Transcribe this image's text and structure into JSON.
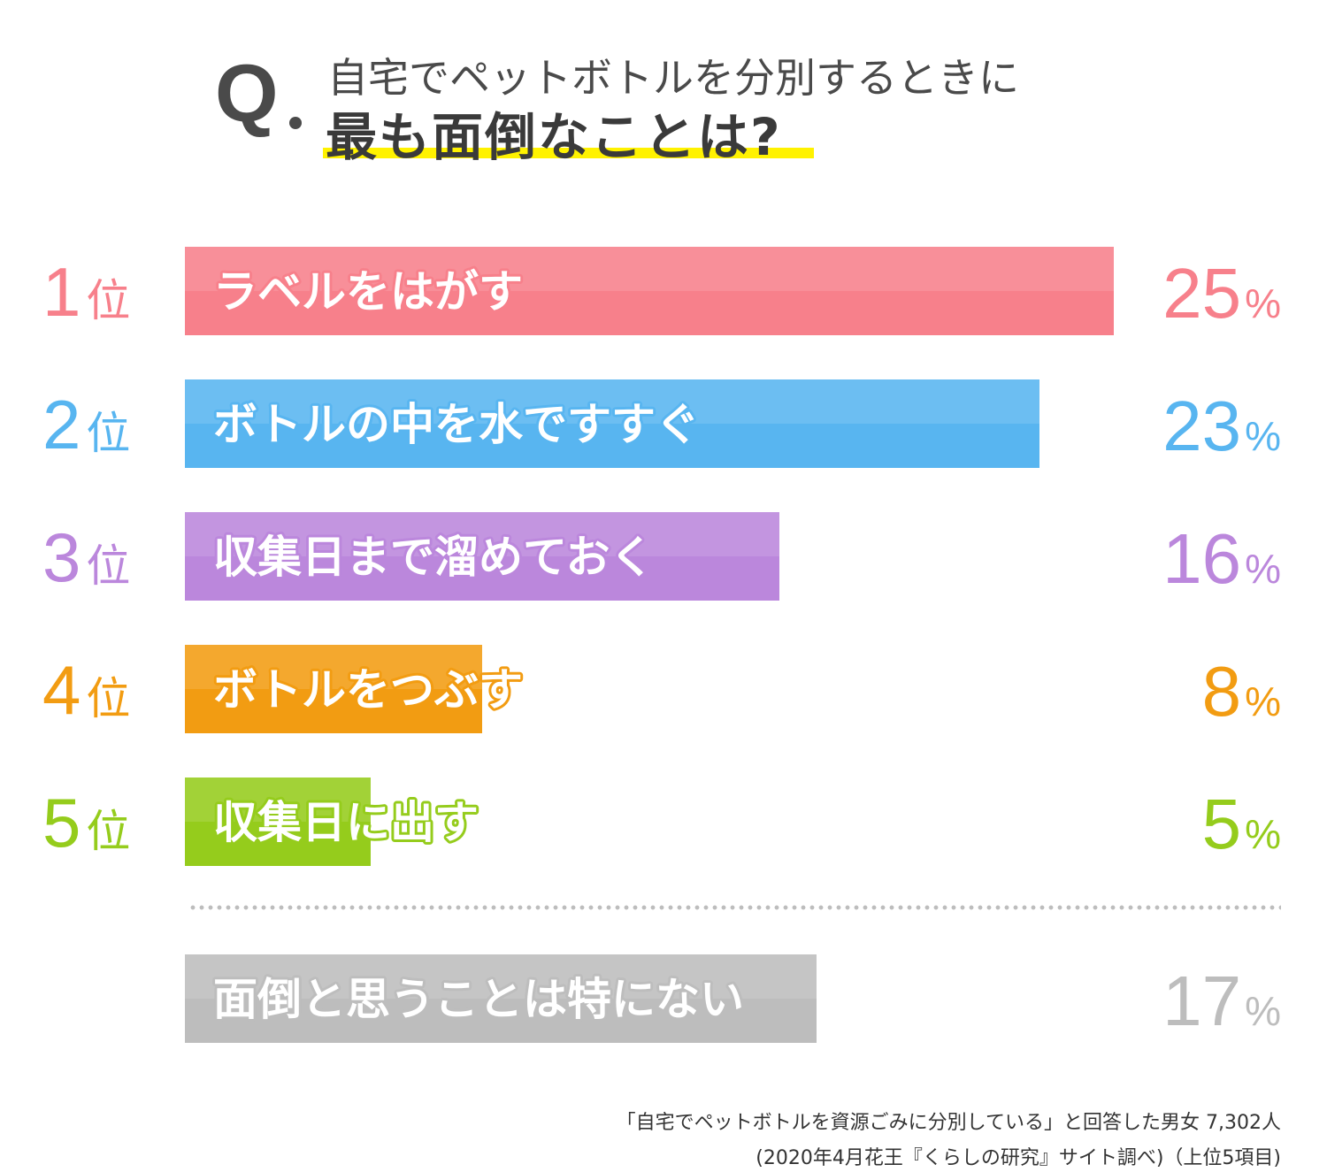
{
  "question": {
    "mark": "Q",
    "line1": "自宅でペットボトルを分別するときに",
    "line2": "最も面倒なことは?"
  },
  "chart_data": {
    "type": "bar",
    "orientation": "horizontal",
    "unit": "%",
    "xlim": [
      0,
      25
    ],
    "categories": [
      "ラベルをはがす",
      "ボトルの中を水ですすぐ",
      "収集日まで溜めておく",
      "ボトルをつぶす",
      "収集日に出す",
      "面倒と思うことは特にない"
    ],
    "ranks": [
      "1",
      "2",
      "3",
      "4",
      "5",
      ""
    ],
    "rank_suffix": "位",
    "values": [
      25,
      23,
      16,
      8,
      5,
      17
    ],
    "colors": [
      "#f7808b",
      "#58b5f0",
      "#bb87dc",
      "#f29c12",
      "#95cc1c",
      "#bdbdbd"
    ],
    "grid": false
  },
  "footnote": {
    "line1": "「自宅でペットボトルを資源ごみに分別している」と回答した男女 7,302人",
    "line2": "(2020年4月花王『くらしの研究』サイト調べ)（上位5項目)"
  }
}
